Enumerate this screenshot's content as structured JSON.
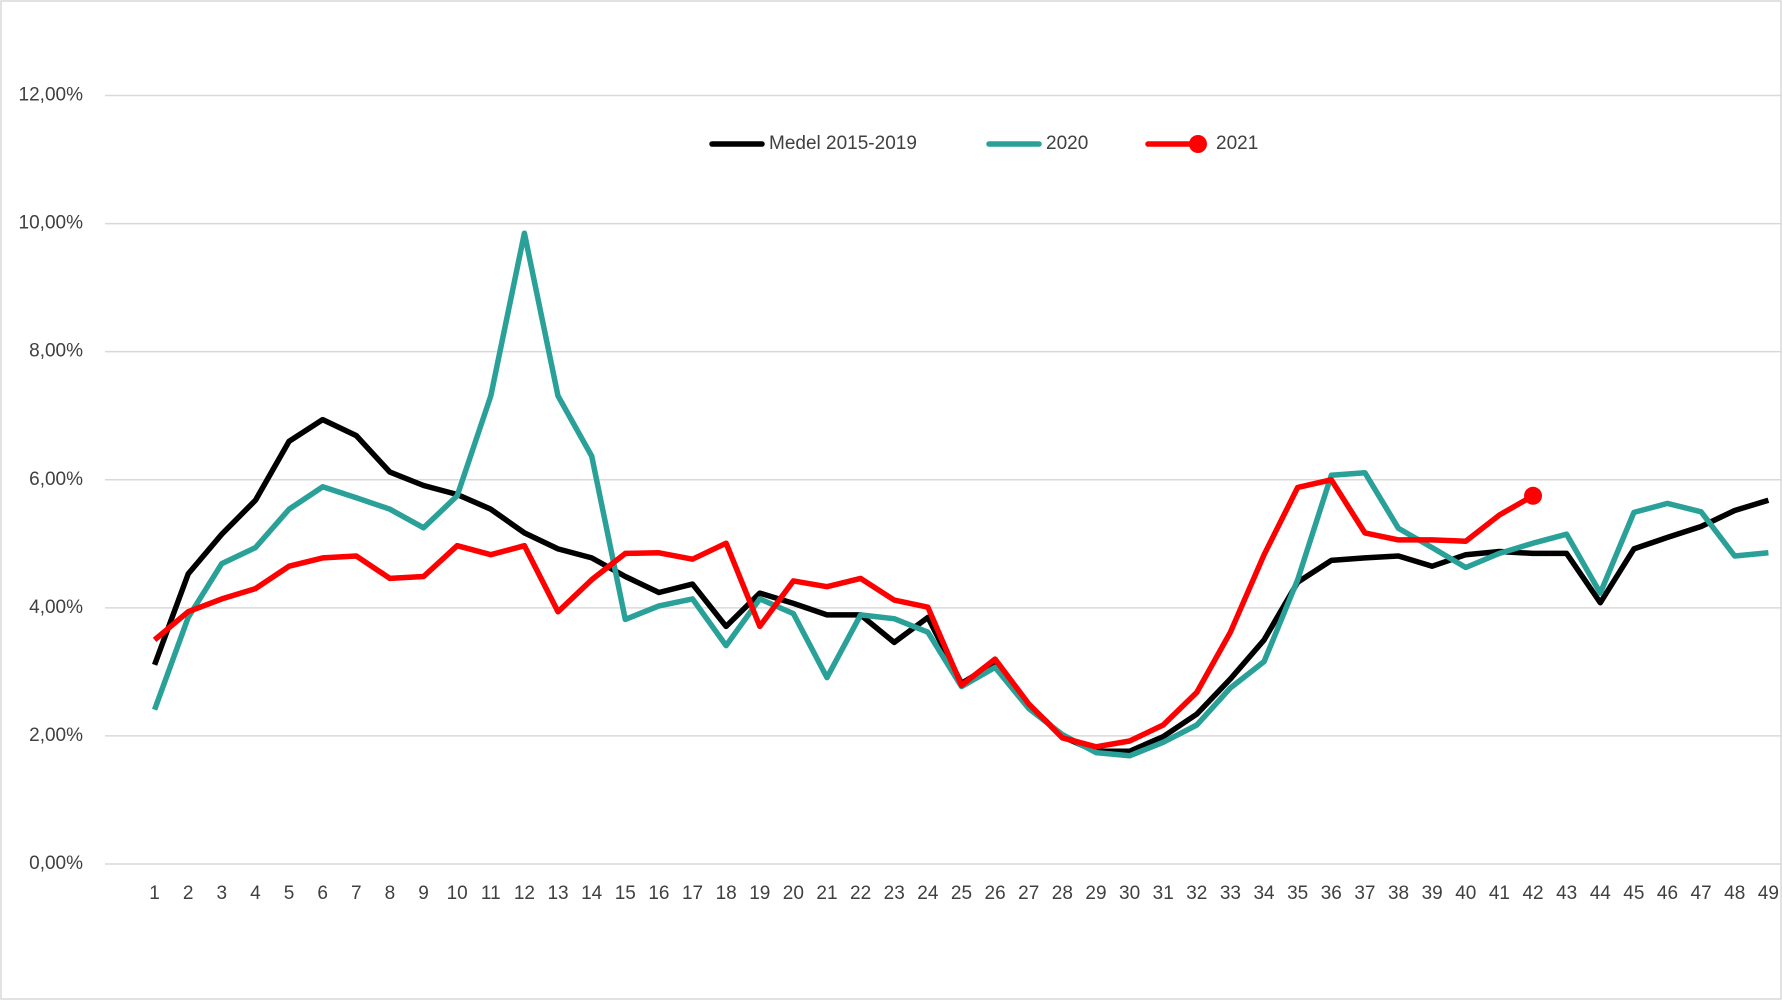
{
  "chart_data": {
    "type": "line",
    "categories": [
      "1",
      "2",
      "3",
      "4",
      "5",
      "6",
      "7",
      "8",
      "9",
      "10",
      "11",
      "12",
      "13",
      "14",
      "15",
      "16",
      "17",
      "18",
      "19",
      "20",
      "21",
      "22",
      "23",
      "24",
      "25",
      "26",
      "27",
      "28",
      "29",
      "30",
      "31",
      "32",
      "33",
      "34",
      "35",
      "36",
      "37",
      "38",
      "39",
      "40",
      "41",
      "42",
      "43",
      "44",
      "45",
      "46",
      "47",
      "48",
      "49"
    ],
    "series": [
      {
        "name": "Medel 2015-2019",
        "color": "#000000",
        "values": [
          3.11,
          4.53,
          5.15,
          5.68,
          6.6,
          6.94,
          6.69,
          6.12,
          5.91,
          5.77,
          5.54,
          5.17,
          4.92,
          4.78,
          4.49,
          4.24,
          4.37,
          3.71,
          4.23,
          4.07,
          3.89,
          3.89,
          3.46,
          3.85,
          2.82,
          3.14,
          2.49,
          1.99,
          1.76,
          1.76,
          1.99,
          2.34,
          2.89,
          3.5,
          4.4,
          4.74,
          4.78,
          4.81,
          4.65,
          4.83,
          4.88,
          4.85,
          4.85,
          4.08,
          4.92,
          5.1,
          5.27,
          5.52,
          5.68
        ]
      },
      {
        "name": "2020",
        "color": "#2aa198",
        "values": [
          2.41,
          3.85,
          4.69,
          4.94,
          5.54,
          5.89,
          5.72,
          5.54,
          5.25,
          5.75,
          7.31,
          9.85,
          7.31,
          6.37,
          3.82,
          4.03,
          4.14,
          3.41,
          4.14,
          3.91,
          2.91,
          3.89,
          3.83,
          3.62,
          2.77,
          3.07,
          2.43,
          2.02,
          1.74,
          1.69,
          1.9,
          2.17,
          2.75,
          3.16,
          4.44,
          6.07,
          6.11,
          5.24,
          4.94,
          4.63,
          4.85,
          5.01,
          5.15,
          4.23,
          5.49,
          5.63,
          5.5,
          4.81,
          4.86
        ]
      },
      {
        "name": "2021",
        "color": "#ff0000",
        "end_marker": true,
        "values": [
          3.5,
          3.94,
          4.14,
          4.3,
          4.65,
          4.78,
          4.81,
          4.46,
          4.49,
          4.97,
          4.83,
          4.97,
          3.94,
          4.44,
          4.85,
          4.86,
          4.76,
          5.01,
          3.71,
          4.42,
          4.33,
          4.46,
          4.12,
          4.01,
          2.79,
          3.2,
          2.5,
          1.97,
          1.83,
          1.92,
          2.17,
          2.68,
          3.62,
          4.83,
          5.88,
          6.0,
          5.17,
          5.06,
          5.06,
          5.04,
          5.45,
          5.75,
          null,
          null,
          null,
          null,
          null,
          null,
          null
        ]
      }
    ],
    "ylim": [
      0,
      12
    ],
    "yticks": [
      {
        "value": 0,
        "label": "0,00%"
      },
      {
        "value": 2,
        "label": "2,00%"
      },
      {
        "value": 4,
        "label": "4,00%"
      },
      {
        "value": 6,
        "label": "6,00%"
      },
      {
        "value": 8,
        "label": "8,00%"
      },
      {
        "value": 10,
        "label": "10,00%"
      },
      {
        "value": 12,
        "label": "12,00%"
      }
    ],
    "grid": true,
    "legend": "top"
  }
}
